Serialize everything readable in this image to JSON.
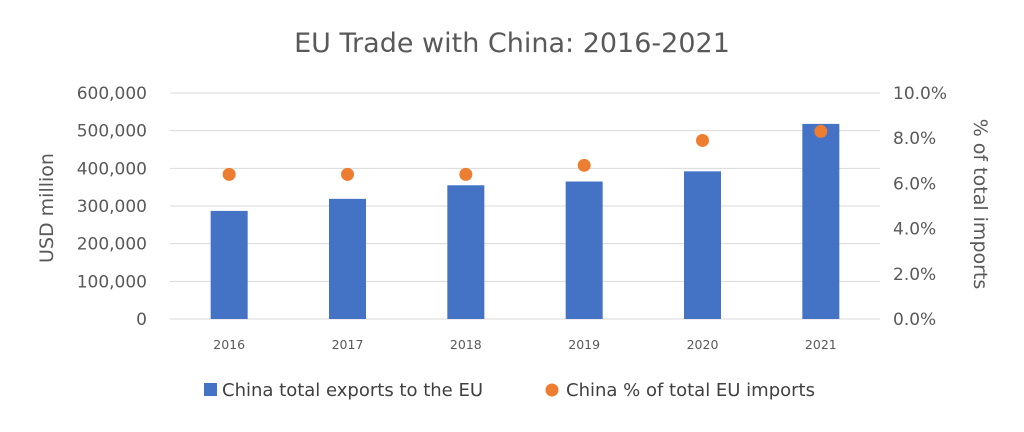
{
  "chart_data": {
    "type": "bar",
    "title": "EU Trade with China: 2016-2021",
    "categories": [
      "2016",
      "2017",
      "2018",
      "2019",
      "2020",
      "2021"
    ],
    "series": [
      {
        "name": "China total exports to the EU",
        "kind": "bar",
        "axis": "left",
        "color": "#4472c4",
        "values": [
          287000,
          319000,
          355000,
          365000,
          392000,
          518000
        ]
      },
      {
        "name": "China % of total EU imports",
        "kind": "scatter",
        "axis": "right",
        "color": "#ed7d31",
        "values": [
          6.4,
          6.4,
          6.4,
          6.8,
          7.9,
          8.3
        ]
      }
    ],
    "ylabel": "USD million",
    "y2label": "% of total imports",
    "ylim": [
      0,
      600000
    ],
    "y2lim": [
      0,
      10
    ],
    "yticks": [
      "0",
      "100,000",
      "200,000",
      "300,000",
      "400,000",
      "500,000",
      "600,000"
    ],
    "y2ticks": [
      "0.0%",
      "2.0%",
      "4.0%",
      "6.0%",
      "8.0%",
      "10.0%"
    ],
    "grid": true,
    "legend_position": "bottom"
  }
}
